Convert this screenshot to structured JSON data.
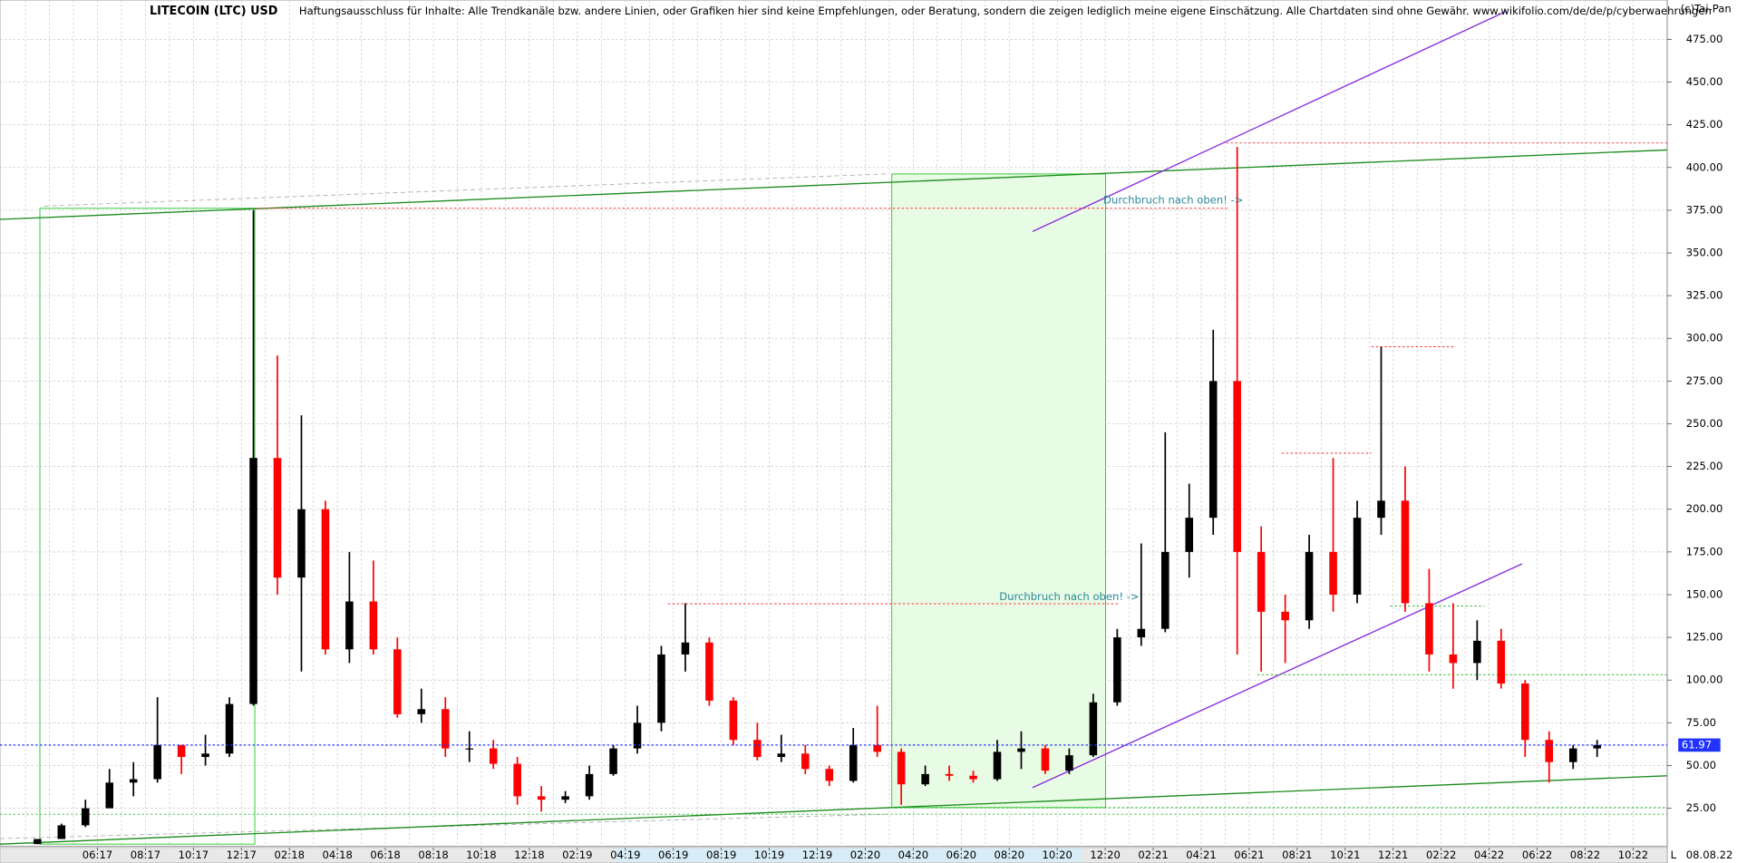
{
  "chart_data": {
    "type": "candlestick",
    "title": "LITECOIN (LTC) USD",
    "subtitle": "Haftungsausschluss für Inhalte: Alle Trendkanäle bzw. andere Linien, oder Grafiken hier sind keine Empfehlungen, oder Beratung, sondern die zeigen lediglich meine eigene Einschätzung. Alle Chartdaten sind ohne Gewähr.  www.wikifolio.com/de/de/p/cyberwaehrungen",
    "copyright": "(c)Tai-Pan",
    "date": "08.08.22",
    "corner_label": "L",
    "annotations": [
      "Durchbruch nach oben! ->",
      "Durchbruch nach oben! ->"
    ],
    "last_price": 61.97,
    "categories": [
      null,
      null,
      null,
      "06:17",
      null,
      "08:17",
      null,
      "10:17",
      null,
      "12:17",
      null,
      "02:18",
      null,
      "04:18",
      null,
      "06:18",
      null,
      "08:18",
      null,
      "10:18",
      null,
      "12:18",
      null,
      "02:19",
      null,
      "04:19",
      null,
      "06:19",
      null,
      "08:19",
      null,
      "10:19",
      null,
      "12:19",
      null,
      "02:20",
      null,
      "04:20",
      null,
      "06:20",
      null,
      "08:20",
      null,
      "10:20",
      null,
      "12:20",
      null,
      "02:21",
      null,
      "04:21",
      null,
      "06:21",
      null,
      "08:21",
      null,
      "10:21",
      null,
      "12:21",
      null,
      "02:22",
      null,
      "04:22",
      null,
      "06:22",
      null,
      "08:22",
      null,
      "10:22"
    ],
    "open": [
      4,
      7,
      15,
      25,
      40,
      42,
      62,
      55,
      57,
      86,
      230,
      160,
      200,
      118,
      146,
      118,
      80,
      83,
      60,
      60,
      51,
      32,
      30,
      32,
      45,
      60,
      75,
      115,
      122,
      88,
      65,
      55,
      57,
      48,
      41,
      62,
      58,
      39,
      45,
      44,
      42,
      58,
      60,
      47,
      56,
      87,
      125,
      130,
      175,
      195,
      275,
      175,
      140,
      135,
      175,
      150,
      195,
      205,
      145,
      115,
      110,
      123,
      98,
      65,
      52,
      60,
      null,
      null
    ],
    "high": [
      5,
      16,
      30,
      48,
      52,
      90,
      62,
      68,
      90,
      375,
      290,
      255,
      205,
      175,
      170,
      125,
      95,
      90,
      70,
      65,
      55,
      38,
      35,
      50,
      62,
      85,
      120,
      145,
      125,
      90,
      75,
      68,
      62,
      50,
      72,
      85,
      60,
      50,
      50,
      47,
      65,
      70,
      62,
      60,
      92,
      130,
      180,
      245,
      215,
      305,
      412,
      190,
      150,
      185,
      230,
      205,
      295,
      225,
      165,
      145,
      135,
      130,
      100,
      70,
      62,
      65,
      null,
      null
    ],
    "low": [
      4,
      7,
      14,
      25,
      32,
      40,
      45,
      50,
      55,
      85,
      150,
      105,
      115,
      110,
      115,
      78,
      75,
      55,
      52,
      48,
      27,
      23,
      28,
      30,
      44,
      57,
      70,
      105,
      85,
      62,
      53,
      52,
      45,
      38,
      40,
      55,
      27,
      38,
      41,
      40,
      41,
      48,
      45,
      45,
      55,
      85,
      120,
      128,
      160,
      185,
      115,
      105,
      110,
      130,
      140,
      145,
      185,
      140,
      105,
      95,
      100,
      95,
      55,
      40,
      48,
      55,
      null,
      null
    ],
    "close": [
      7,
      15,
      25,
      40,
      42,
      62,
      55,
      57,
      86,
      230,
      160,
      200,
      118,
      146,
      118,
      80,
      83,
      60,
      60,
      51,
      32,
      30,
      32,
      45,
      60,
      75,
      115,
      122,
      88,
      65,
      55,
      57,
      48,
      41,
      62,
      58,
      39,
      45,
      44,
      42,
      58,
      60,
      47,
      56,
      87,
      125,
      130,
      175,
      195,
      275,
      175,
      140,
      135,
      175,
      150,
      195,
      205,
      145,
      115,
      110,
      123,
      98,
      65,
      52,
      60,
      62,
      null,
      null
    ],
    "up_color": "#000000",
    "down_color": "#ff0000",
    "ylim": [
      4,
      498
    ],
    "yticks": [
      {
        "value": 25,
        "label": "25.00"
      },
      {
        "value": 50,
        "label": "50.00"
      },
      {
        "value": 75,
        "label": "75.00"
      },
      {
        "value": 100,
        "label": "100.00"
      },
      {
        "value": 125,
        "label": "125.00"
      },
      {
        "value": 150,
        "label": "150.00"
      },
      {
        "value": 175,
        "label": "175.00"
      },
      {
        "value": 200,
        "label": "200.00"
      },
      {
        "value": 225,
        "label": "225.00"
      },
      {
        "value": 250,
        "label": "250.00"
      },
      {
        "value": 275,
        "label": "275.00"
      },
      {
        "value": 300,
        "label": "300.00"
      },
      {
        "value": 325,
        "label": "325.00"
      },
      {
        "value": 350,
        "label": "350.00"
      },
      {
        "value": 375,
        "label": "375.00"
      },
      {
        "value": 400,
        "label": "400.00"
      },
      {
        "value": 425,
        "label": "425.00"
      },
      {
        "value": 450,
        "label": "450.00"
      },
      {
        "value": 475,
        "label": "475.00"
      }
    ],
    "grid": true
  }
}
